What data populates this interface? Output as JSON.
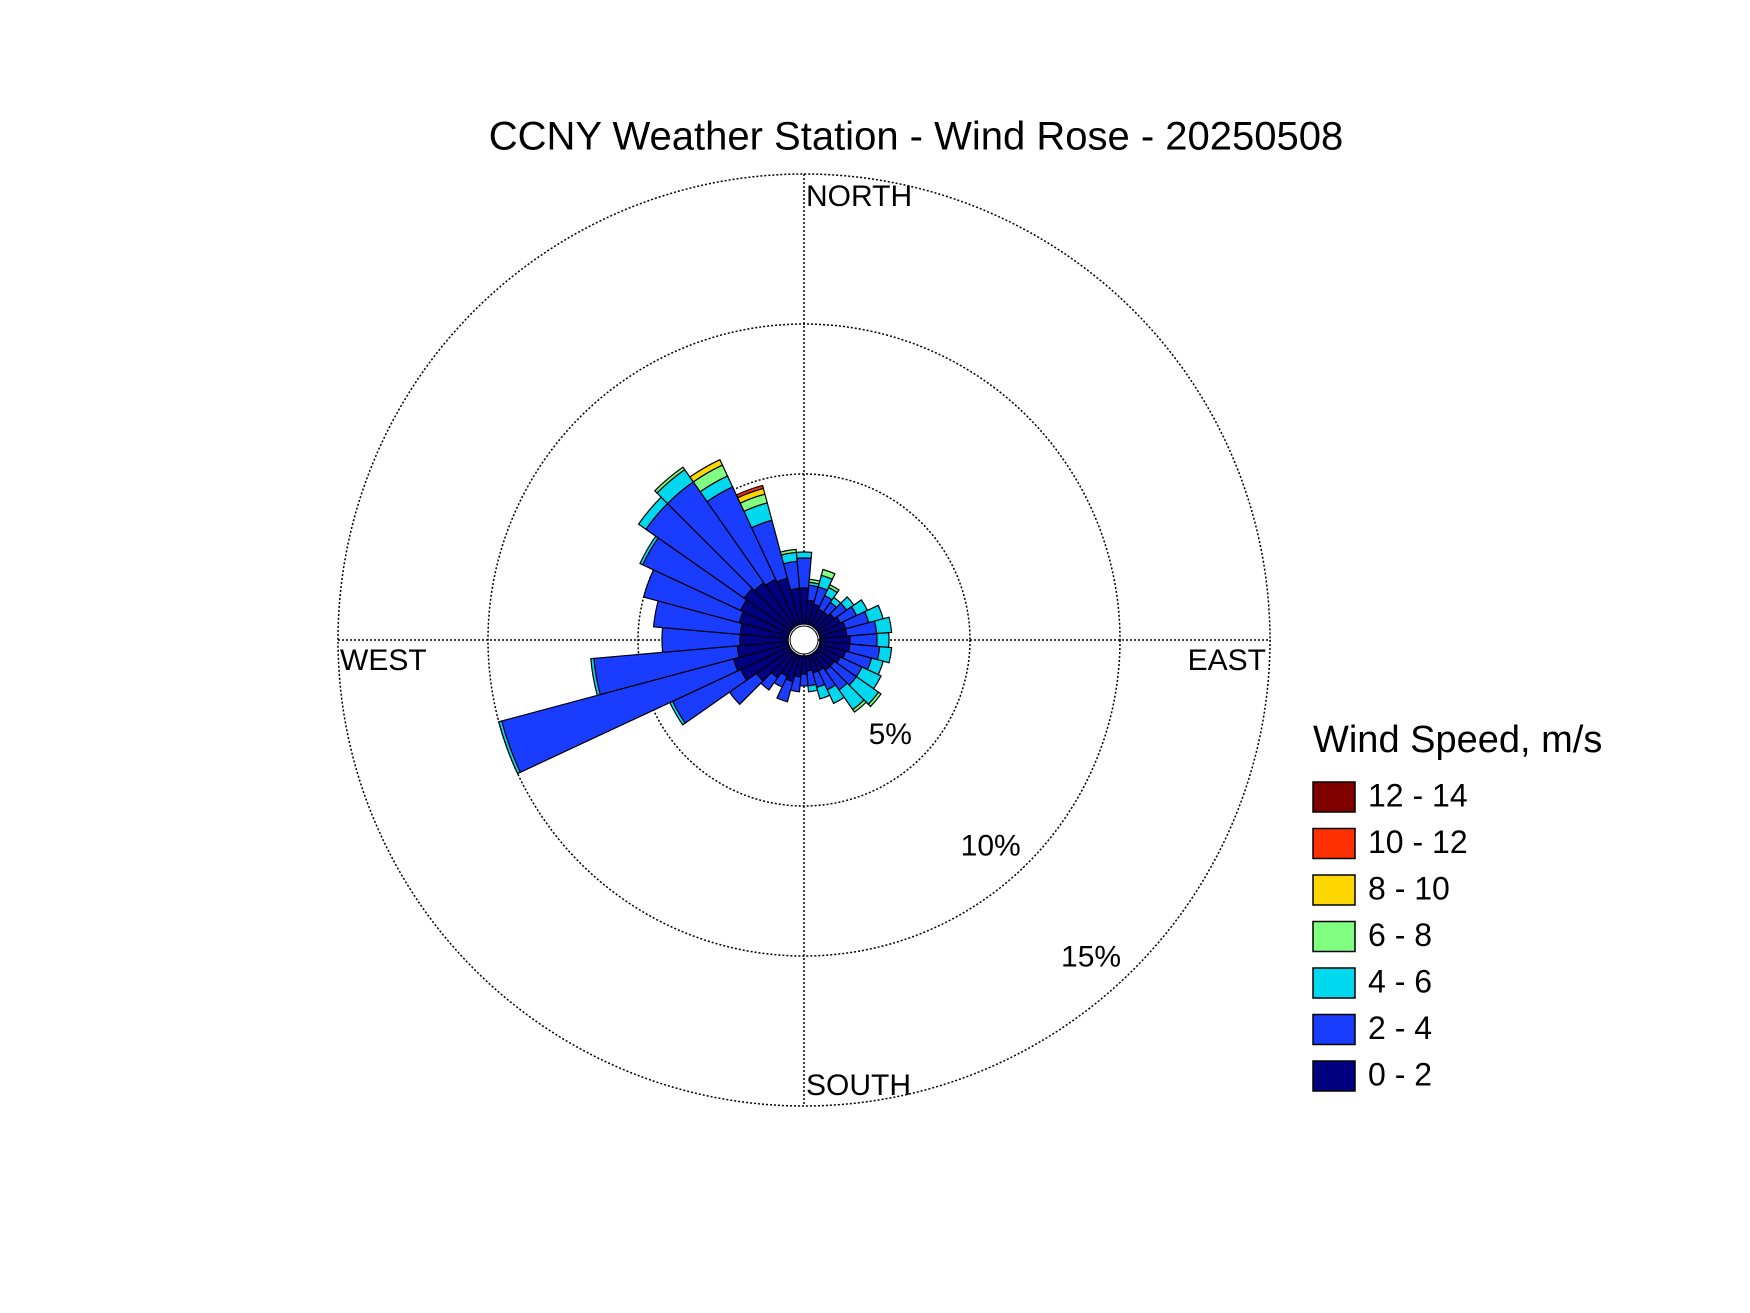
{
  "chart_data": {
    "type": "windrose",
    "title": "CCNY Weather Station - Wind Rose - 20250508",
    "legend_title": "Wind Speed, m/s",
    "direction_labels": {
      "north": "NORTH",
      "east": "EAST",
      "south": "SOUTH",
      "west": "WEST"
    },
    "directions": [
      0,
      10,
      20,
      30,
      40,
      50,
      60,
      70,
      80,
      90,
      100,
      110,
      120,
      130,
      140,
      150,
      160,
      170,
      180,
      190,
      200,
      210,
      220,
      230,
      240,
      250,
      260,
      270,
      280,
      290,
      300,
      310,
      320,
      330,
      340,
      350
    ],
    "rlim": [
      0,
      15
    ],
    "rticks": [
      {
        "value": 5,
        "label": "5%"
      },
      {
        "value": 10,
        "label": "10%"
      },
      {
        "value": 15,
        "label": "15%"
      }
    ],
    "series": [
      {
        "name": "0 - 2",
        "color": "#000080",
        "values": [
          1.2,
          0.8,
          0.7,
          0.6,
          0.6,
          0.7,
          0.8,
          0.9,
          0.9,
          1.0,
          1.0,
          0.9,
          0.8,
          0.7,
          0.7,
          0.6,
          0.6,
          0.5,
          0.6,
          0.7,
          0.9,
          0.8,
          1.0,
          1.4,
          1.8,
          1.9,
          1.7,
          1.6,
          1.6,
          1.7,
          1.8,
          1.9,
          1.8,
          1.7,
          1.6,
          1.2
        ]
      },
      {
        "name": "2 - 4",
        "color": "#1a3cff",
        "values": [
          1.0,
          0.5,
          0.6,
          0.5,
          0.4,
          0.5,
          0.6,
          0.8,
          1.0,
          0.9,
          1.0,
          0.9,
          0.8,
          0.9,
          0.8,
          0.7,
          0.5,
          0.5,
          0.4,
          0.5,
          0.7,
          0.4,
          0.5,
          1.1,
          2.5,
          8.0,
          4.8,
          2.6,
          2.9,
          3.3,
          3.6,
          4.0,
          4.1,
          3.4,
          2.0,
          0.9
        ]
      },
      {
        "name": "4 - 6",
        "color": "#00d8f0",
        "values": [
          0.2,
          0.1,
          0.4,
          0.3,
          0.2,
          0.3,
          0.4,
          0.5,
          0.5,
          0.4,
          0.4,
          0.4,
          0.7,
          0.9,
          0.8,
          0.5,
          0.4,
          0.2,
          0,
          0,
          0,
          0,
          0,
          0,
          0.1,
          0.1,
          0.1,
          0,
          0,
          0,
          0.1,
          0.3,
          0.5,
          0.4,
          0.6,
          0.3
        ]
      },
      {
        "name": "6 - 8",
        "color": "#80ff80",
        "values": [
          0,
          0.1,
          0.2,
          0.1,
          0,
          0,
          0,
          0,
          0,
          0,
          0,
          0,
          0,
          0.1,
          0.1,
          0,
          0,
          0,
          0,
          0,
          0,
          0,
          0,
          0,
          0,
          0,
          0,
          0,
          0,
          0,
          0,
          0,
          0.1,
          0.4,
          0.3,
          0.1
        ]
      },
      {
        "name": "8 - 10",
        "color": "#ffd700",
        "values": [
          0,
          0,
          0,
          0,
          0,
          0,
          0,
          0,
          0,
          0,
          0,
          0,
          0,
          0,
          0,
          0,
          0,
          0,
          0,
          0,
          0,
          0,
          0,
          0,
          0,
          0,
          0,
          0,
          0,
          0,
          0,
          0,
          0,
          0.2,
          0.2,
          0
        ]
      },
      {
        "name": "10 - 12",
        "color": "#ff3000",
        "values": [
          0,
          0,
          0,
          0,
          0,
          0,
          0,
          0,
          0,
          0,
          0,
          0,
          0,
          0,
          0,
          0,
          0,
          0,
          0,
          0,
          0,
          0,
          0,
          0,
          0,
          0,
          0,
          0,
          0,
          0,
          0,
          0,
          0,
          0,
          0.1,
          0
        ]
      },
      {
        "name": "12 - 14",
        "color": "#800000",
        "values": [
          0,
          0,
          0,
          0,
          0,
          0,
          0,
          0,
          0,
          0,
          0,
          0,
          0,
          0,
          0,
          0,
          0,
          0,
          0,
          0,
          0,
          0,
          0,
          0,
          0,
          0,
          0,
          0,
          0,
          0,
          0,
          0,
          0,
          0,
          0,
          0
        ]
      }
    ]
  }
}
